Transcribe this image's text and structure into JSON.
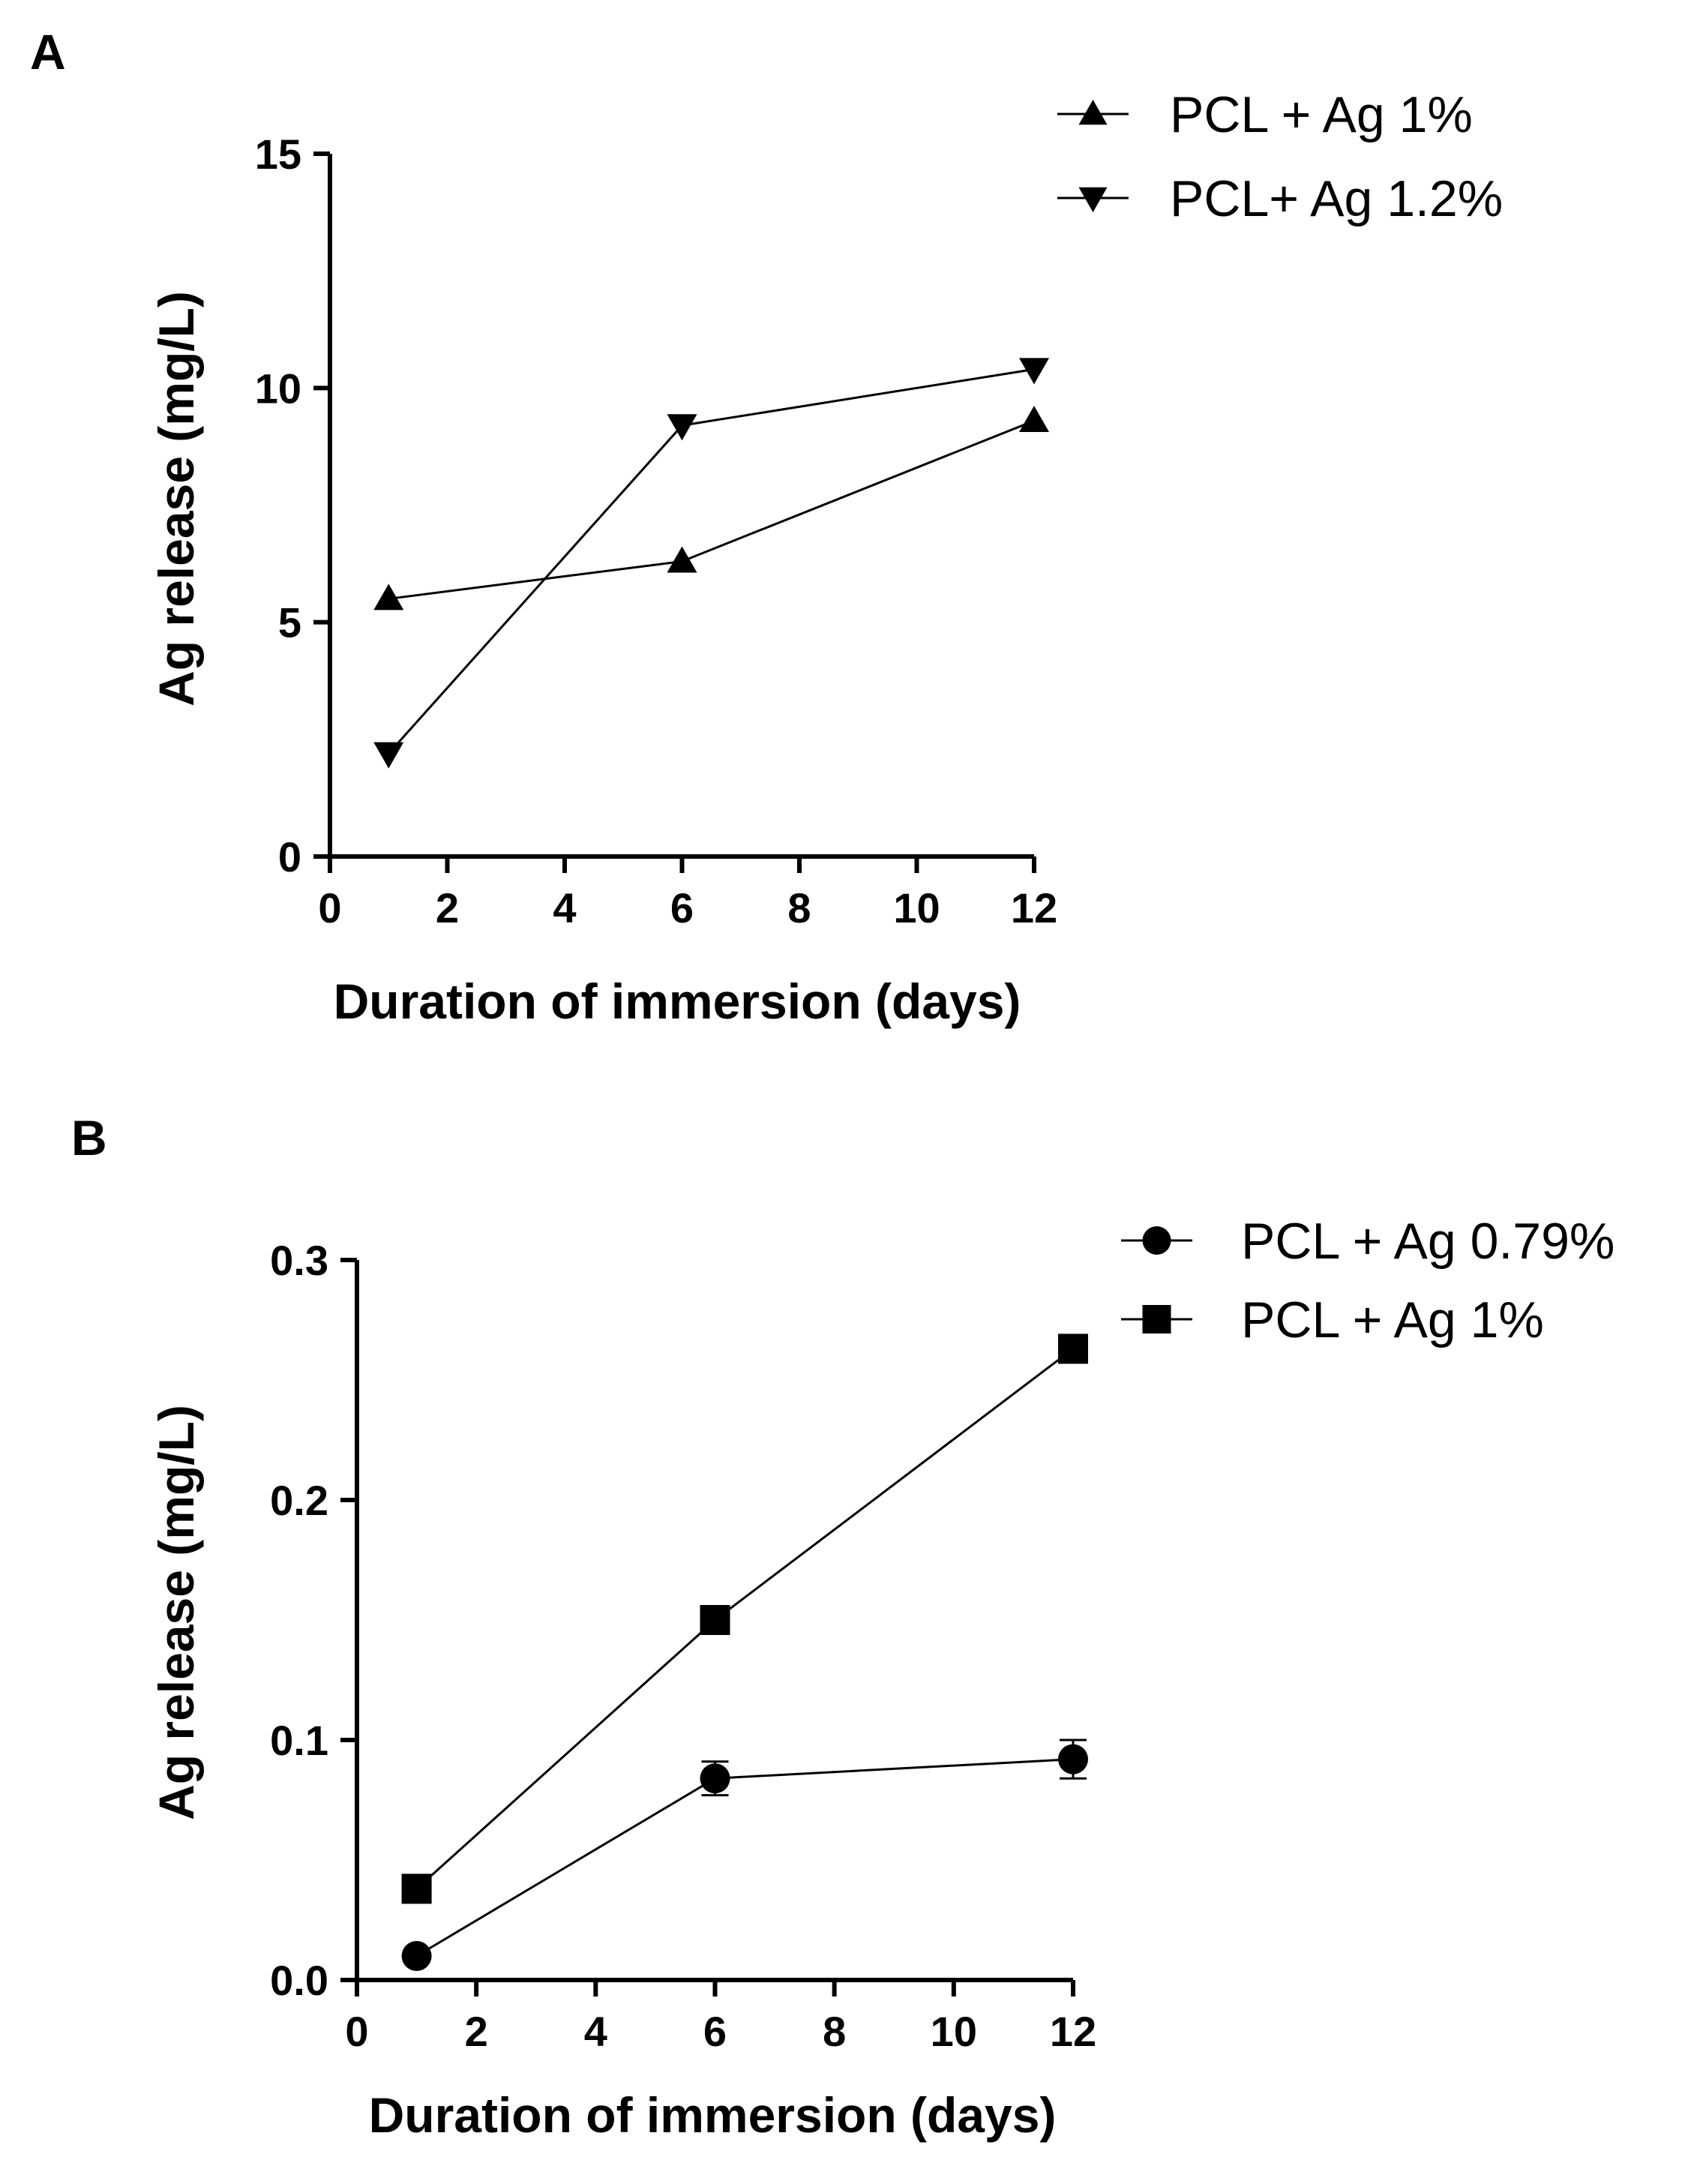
{
  "chart_data": [
    {
      "type": "line",
      "panel": "A",
      "xlabel": "Duration of immersion (days)",
      "ylabel": "Ag release (mg/L)",
      "xlim": [
        0,
        12
      ],
      "ylim": [
        0,
        15
      ],
      "xticks": [
        0,
        2,
        4,
        6,
        8,
        10,
        12
      ],
      "yticks": [
        0,
        5,
        10,
        15
      ],
      "xtick_labels": [
        "0",
        "2",
        "4",
        "6",
        "8",
        "10",
        "12"
      ],
      "ytick_labels": [
        "0",
        "5",
        "10",
        "15"
      ],
      "legend": "top-right",
      "series": [
        {
          "name": "PCL + Ag 1%",
          "marker": "triangle-up",
          "x": [
            1,
            6,
            12
          ],
          "values": [
            5.5,
            6.3,
            9.3
          ],
          "errors": [
            0,
            0,
            0
          ]
        },
        {
          "name": "PCL+ Ag 1.2%",
          "marker": "triangle-down",
          "x": [
            1,
            6,
            12
          ],
          "values": [
            2.2,
            9.2,
            10.4
          ],
          "errors": [
            0,
            0,
            0
          ]
        }
      ]
    },
    {
      "type": "line",
      "panel": "B",
      "xlabel": "Duration of immersion (days)",
      "ylabel": "Ag release (mg/L)",
      "xlim": [
        0,
        12
      ],
      "ylim": [
        0,
        0.3
      ],
      "xticks": [
        0,
        2,
        4,
        6,
        8,
        10,
        12
      ],
      "yticks": [
        0,
        0.1,
        0.2,
        0.3
      ],
      "xtick_labels": [
        "0",
        "2",
        "4",
        "6",
        "8",
        "10",
        "12"
      ],
      "ytick_labels": [
        "0.0",
        "0.1",
        "0.2",
        "0.3"
      ],
      "legend": "top-right",
      "series": [
        {
          "name": "PCL + Ag 0.79%",
          "marker": "circle",
          "x": [
            1,
            6,
            12
          ],
          "values": [
            0.01,
            0.084,
            0.092
          ],
          "errors": [
            0,
            0.007,
            0.008
          ]
        },
        {
          "name": "PCL + Ag 1%",
          "marker": "square",
          "x": [
            1,
            6,
            12
          ],
          "values": [
            0.038,
            0.15,
            0.263
          ],
          "errors": [
            0,
            0,
            0
          ]
        }
      ]
    }
  ]
}
